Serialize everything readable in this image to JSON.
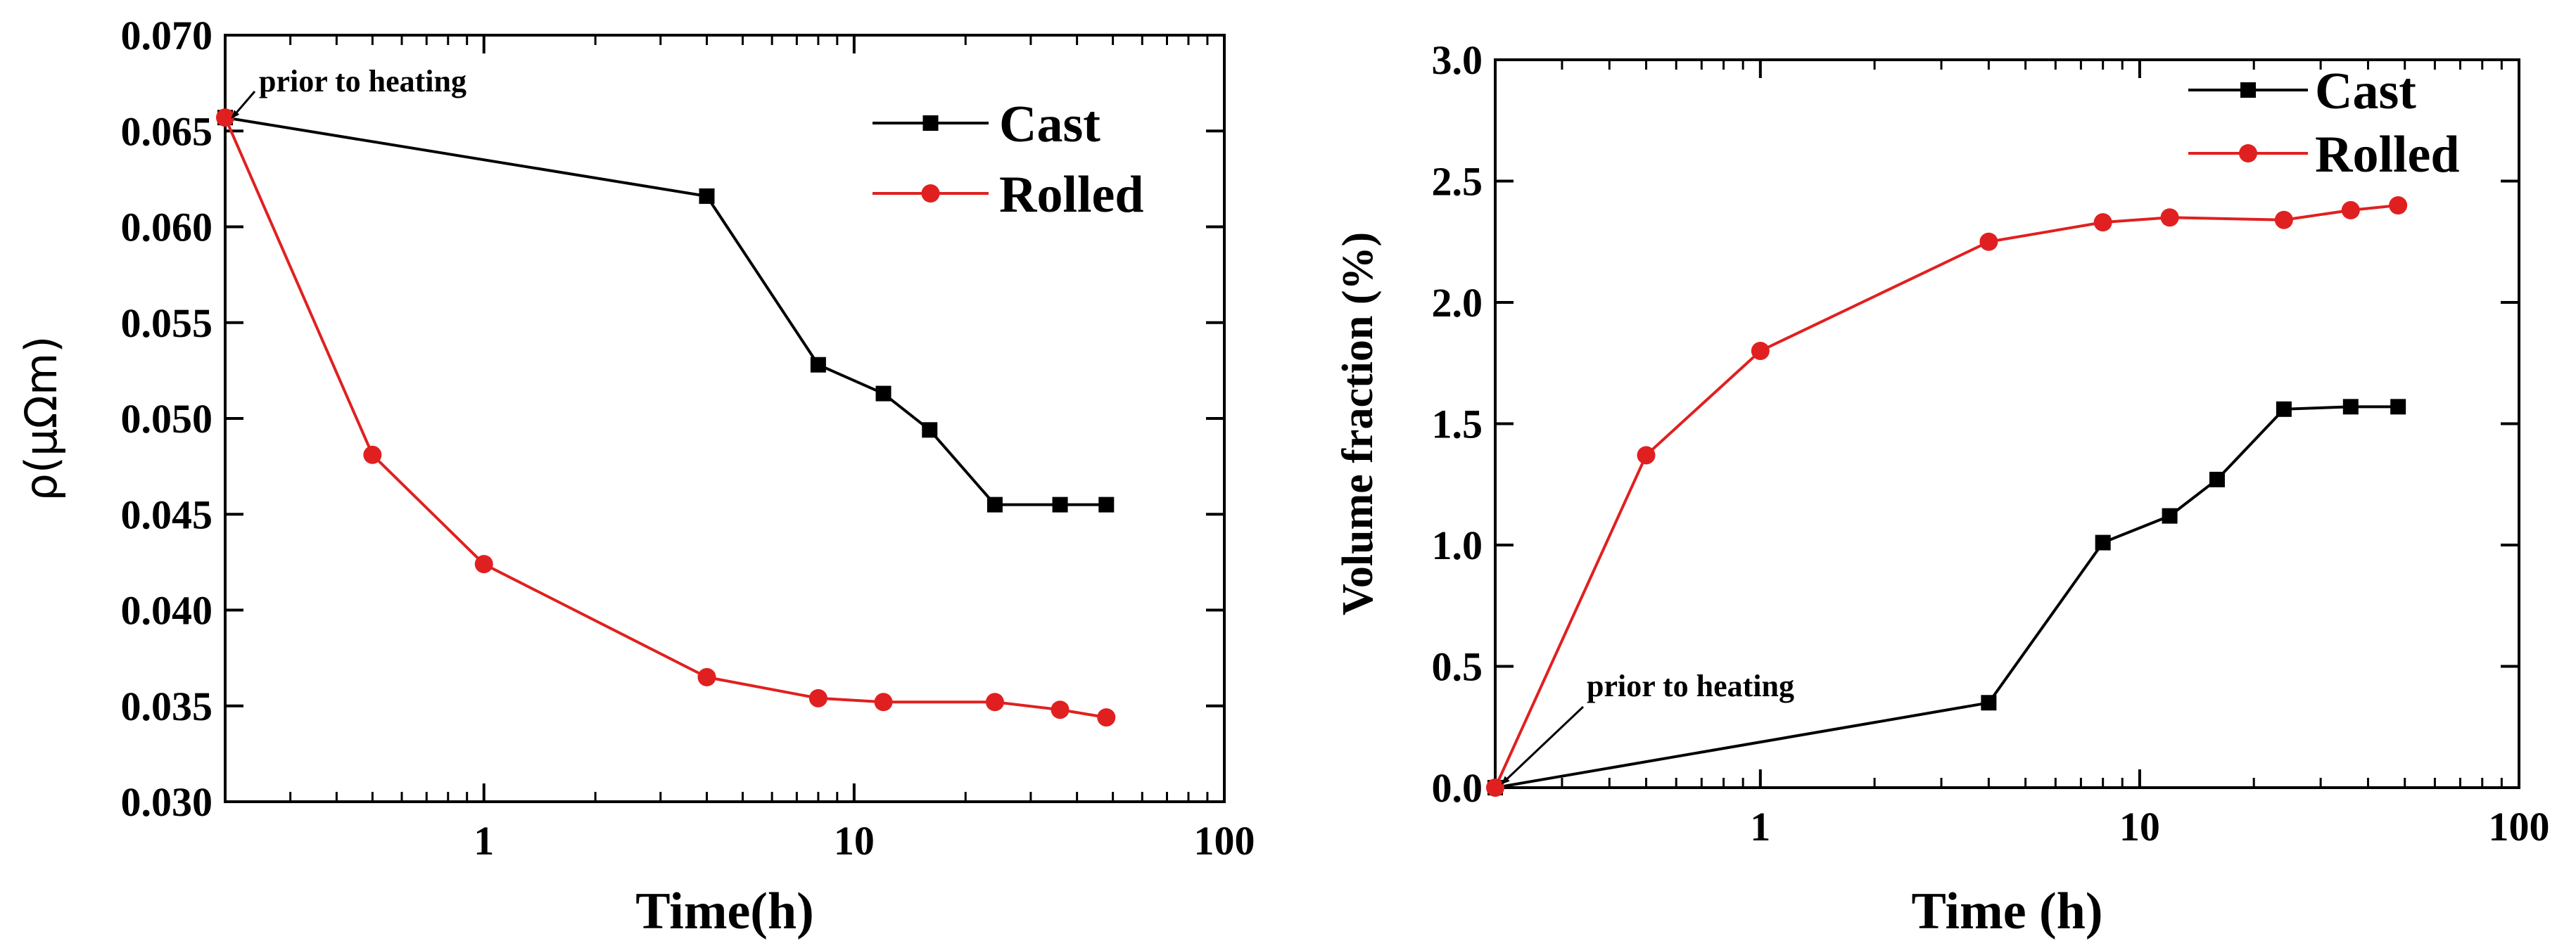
{
  "colors": {
    "cast": "#000000",
    "rolled": "#e02020",
    "axis": "#000000"
  },
  "chart_data": [
    {
      "type": "line",
      "x_scale": "log",
      "xlim": [
        0.2,
        100
      ],
      "ylim": [
        0.03,
        0.07
      ],
      "x_ticks": [
        {
          "value": 1,
          "label": "1"
        },
        {
          "value": 10,
          "label": "10"
        },
        {
          "value": 100,
          "label": "100"
        }
      ],
      "y_ticks": [
        {
          "value": 0.03,
          "label": "0.030"
        },
        {
          "value": 0.035,
          "label": "0.035"
        },
        {
          "value": 0.04,
          "label": "0.040"
        },
        {
          "value": 0.045,
          "label": "0.045"
        },
        {
          "value": 0.05,
          "label": "0.050"
        },
        {
          "value": 0.055,
          "label": "0.055"
        },
        {
          "value": 0.06,
          "label": "0.060"
        },
        {
          "value": 0.065,
          "label": "0.065"
        },
        {
          "value": 0.07,
          "label": "0.070"
        }
      ],
      "xlabel": "Time(h)",
      "ylabel": "ρ(μΩm)",
      "legend_position": "top-right",
      "grid": false,
      "series": [
        {
          "name": "Cast",
          "marker": "square",
          "color": "#000000",
          "x": [
            0.2,
            4,
            8,
            12,
            16,
            24,
            36,
            48
          ],
          "y": [
            0.0657,
            0.0616,
            0.0528,
            0.0513,
            0.0494,
            0.0455,
            0.0455,
            0.0455
          ]
        },
        {
          "name": "Rolled",
          "marker": "circle",
          "color": "#e02020",
          "x": [
            0.2,
            0.5,
            1,
            4,
            8,
            12,
            24,
            36,
            48
          ],
          "y": [
            0.0657,
            0.0481,
            0.0424,
            0.0365,
            0.0354,
            0.0352,
            0.0352,
            0.0348,
            0.0344
          ]
        }
      ],
      "annotations": [
        {
          "text": "prior to heating",
          "x": 0.2,
          "y": 0.0657
        }
      ]
    },
    {
      "type": "line",
      "x_scale": "log",
      "xlim": [
        0.2,
        100
      ],
      "ylim": [
        0.0,
        3.0
      ],
      "x_ticks": [
        {
          "value": 1,
          "label": "1"
        },
        {
          "value": 10,
          "label": "10"
        },
        {
          "value": 100,
          "label": "100"
        }
      ],
      "y_ticks": [
        {
          "value": 0.0,
          "label": "0.0"
        },
        {
          "value": 0.5,
          "label": "0.5"
        },
        {
          "value": 1.0,
          "label": "1.0"
        },
        {
          "value": 1.5,
          "label": "1.5"
        },
        {
          "value": 2.0,
          "label": "2.0"
        },
        {
          "value": 2.5,
          "label": "2.5"
        },
        {
          "value": 3.0,
          "label": "3.0"
        }
      ],
      "xlabel": "Time (h)",
      "ylabel": "Volume fraction (%)",
      "legend_position": "top-right",
      "grid": false,
      "series": [
        {
          "name": "Cast",
          "marker": "square",
          "color": "#000000",
          "x": [
            0.2,
            4,
            8,
            12,
            16,
            24,
            36,
            48
          ],
          "y": [
            0.0,
            0.35,
            1.01,
            1.12,
            1.27,
            1.56,
            1.57,
            1.57
          ]
        },
        {
          "name": "Rolled",
          "marker": "circle",
          "color": "#e02020",
          "x": [
            0.2,
            0.5,
            1,
            4,
            8,
            12,
            24,
            36,
            48
          ],
          "y": [
            0.0,
            1.37,
            1.8,
            2.25,
            2.33,
            2.35,
            2.34,
            2.38,
            2.4
          ]
        }
      ],
      "annotations": [
        {
          "text": "prior to heating",
          "x": 0.2,
          "y": 0.0
        }
      ]
    }
  ]
}
